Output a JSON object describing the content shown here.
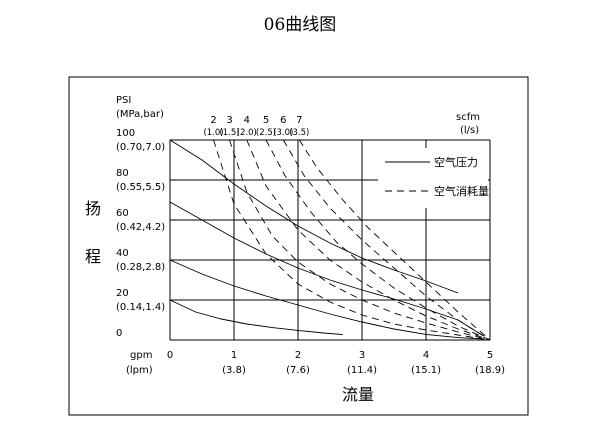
{
  "title": "06曲线图",
  "chart_data": {
    "type": "line",
    "title": "06曲线图",
    "xlabel": "流量",
    "ylabel": "扬程",
    "x_units": {
      "primary": "gpm",
      "secondary": "(lpm)"
    },
    "y_units": {
      "primary": "PSI",
      "secondary": "(MPa,bar)"
    },
    "air_units": {
      "primary": "scfm",
      "secondary": "(l/s)"
    },
    "xlim": [
      0,
      5
    ],
    "ylim": [
      0,
      100
    ],
    "grid": true,
    "legend_position": "top-right",
    "x_ticks": [
      {
        "value": 0,
        "label": "0",
        "sub": ""
      },
      {
        "value": 1,
        "label": "1",
        "sub": "(3.8)"
      },
      {
        "value": 2,
        "label": "2",
        "sub": "(7.6)"
      },
      {
        "value": 3,
        "label": "3",
        "sub": "(11.4)"
      },
      {
        "value": 4,
        "label": "4",
        "sub": "(15.1)"
      },
      {
        "value": 5,
        "label": "5",
        "sub": "(18.9)"
      }
    ],
    "y_ticks": [
      {
        "value": 100,
        "label": "100",
        "sub": "(0.70,7.0)"
      },
      {
        "value": 80,
        "label": "80",
        "sub": "(0.55,5.5)"
      },
      {
        "value": 60,
        "label": "60",
        "sub": "(0.42,4.2)"
      },
      {
        "value": 40,
        "label": "40",
        "sub": "(0.28,2.8)"
      },
      {
        "value": 20,
        "label": "20",
        "sub": "(0.14,1.4)"
      },
      {
        "value": 0,
        "label": "0",
        "sub": ""
      }
    ],
    "air_ticks": [
      {
        "label": "2",
        "sub": "(1.0)",
        "x": 0.68
      },
      {
        "label": "3",
        "sub": "(1.5)",
        "x": 0.93
      },
      {
        "label": "4",
        "sub": "(2.0)",
        "x": 1.2
      },
      {
        "label": "5",
        "sub": "(2.5)",
        "x": 1.5
      },
      {
        "label": "6",
        "sub": "(3.0)",
        "x": 1.77
      },
      {
        "label": "7",
        "sub": "(3.5)",
        "x": 2.02
      }
    ],
    "legend": {
      "air_pressure": "空气压力",
      "air_consumption": "空气消耗量"
    },
    "series": [
      {
        "name": "空气压力",
        "style": "solid",
        "points": [
          [
            0,
            100
          ],
          [
            0.5,
            90
          ],
          [
            1,
            78
          ],
          [
            1.5,
            67
          ],
          [
            2,
            57
          ],
          [
            2.5,
            48.5
          ],
          [
            3,
            41
          ],
          [
            3.5,
            35
          ],
          [
            4,
            29.5
          ],
          [
            4.5,
            23.5
          ]
        ]
      },
      {
        "name": "空气压力",
        "style": "solid",
        "points": [
          [
            0,
            69
          ],
          [
            0.5,
            60
          ],
          [
            1,
            51
          ],
          [
            1.5,
            43
          ],
          [
            2,
            36
          ],
          [
            2.5,
            30
          ],
          [
            3,
            25
          ],
          [
            3.5,
            20.5
          ],
          [
            4,
            15.5
          ],
          [
            4.5,
            10
          ],
          [
            4.9,
            2
          ]
        ]
      },
      {
        "name": "空气压力",
        "style": "solid",
        "points": [
          [
            0,
            40
          ],
          [
            0.5,
            33
          ],
          [
            1,
            27
          ],
          [
            1.5,
            22
          ],
          [
            2,
            17.5
          ],
          [
            2.5,
            13
          ],
          [
            3,
            9
          ],
          [
            3.5,
            5.5
          ],
          [
            4,
            2.8
          ],
          [
            4.5,
            1.2
          ],
          [
            4.9,
            0.5
          ]
        ]
      },
      {
        "name": "空气压力",
        "style": "solid",
        "points": [
          [
            0,
            20
          ],
          [
            0.4,
            14
          ],
          [
            0.8,
            10.5
          ],
          [
            1.2,
            8
          ],
          [
            1.6,
            6.2
          ],
          [
            2,
            4.8
          ],
          [
            2.4,
            3.5
          ],
          [
            2.7,
            2.7
          ]
        ]
      },
      {
        "name": "空气消耗量",
        "style": "dashed",
        "points": [
          [
            0.68,
            100
          ],
          [
            1,
            68
          ],
          [
            1.5,
            43
          ],
          [
            2,
            28
          ],
          [
            2.5,
            19
          ],
          [
            3,
            12.5
          ],
          [
            3.5,
            8
          ],
          [
            4,
            5
          ],
          [
            4.5,
            2.5
          ],
          [
            5,
            0
          ]
        ]
      },
      {
        "name": "空气消耗量",
        "style": "dashed",
        "points": [
          [
            0.93,
            100
          ],
          [
            1.2,
            74
          ],
          [
            1.6,
            52
          ],
          [
            2,
            39
          ],
          [
            2.5,
            28
          ],
          [
            3,
            20
          ],
          [
            3.5,
            13.5
          ],
          [
            4,
            8.5
          ],
          [
            4.5,
            4
          ],
          [
            5,
            0
          ]
        ]
      },
      {
        "name": "空气消耗量",
        "style": "dashed",
        "points": [
          [
            1.2,
            100
          ],
          [
            1.5,
            77
          ],
          [
            2,
            55
          ],
          [
            2.5,
            40
          ],
          [
            3,
            29
          ],
          [
            3.5,
            20
          ],
          [
            4,
            12
          ],
          [
            4.5,
            5.5
          ],
          [
            5,
            0
          ]
        ]
      },
      {
        "name": "空气消耗量",
        "style": "dashed",
        "points": [
          [
            1.5,
            100
          ],
          [
            1.8,
            82
          ],
          [
            2.2,
            64
          ],
          [
            2.6,
            49
          ],
          [
            3,
            38
          ],
          [
            3.5,
            26
          ],
          [
            4,
            16
          ],
          [
            4.5,
            7
          ],
          [
            5,
            0
          ]
        ]
      },
      {
        "name": "空气消耗量",
        "style": "dashed",
        "points": [
          [
            1.77,
            100
          ],
          [
            2.1,
            82
          ],
          [
            2.5,
            66
          ],
          [
            3,
            50
          ],
          [
            3.5,
            36
          ],
          [
            4,
            22
          ],
          [
            4.5,
            10
          ],
          [
            5,
            0
          ]
        ]
      },
      {
        "name": "空气消耗量",
        "style": "dashed",
        "points": [
          [
            2.02,
            100
          ],
          [
            2.3,
            86
          ],
          [
            2.7,
            70
          ],
          [
            3.1,
            56
          ],
          [
            3.5,
            44
          ],
          [
            4,
            29
          ],
          [
            4.5,
            14
          ],
          [
            5,
            0
          ]
        ]
      }
    ]
  }
}
